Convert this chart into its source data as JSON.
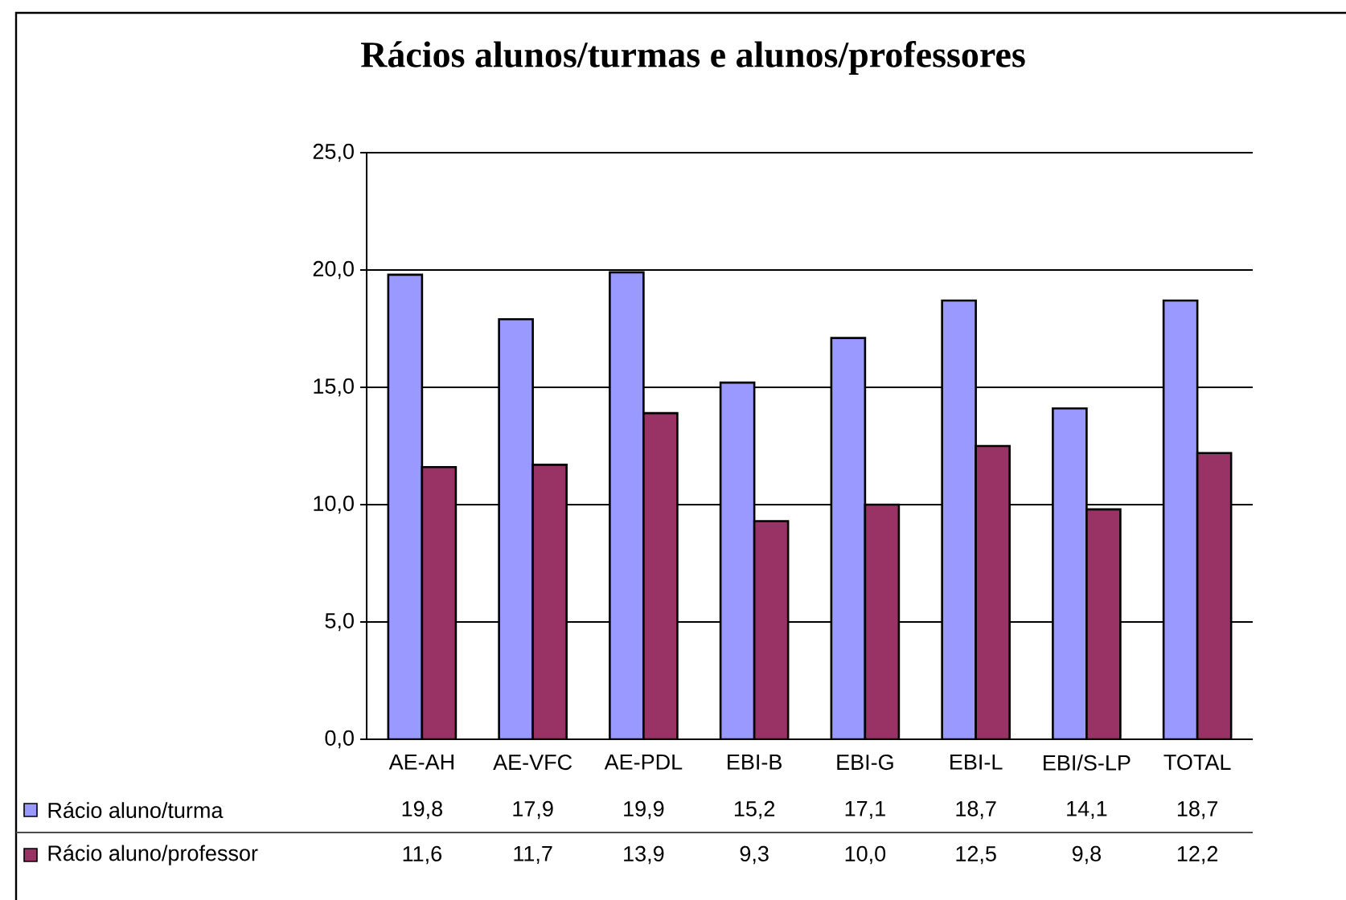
{
  "chart_data": {
    "type": "bar",
    "title": "Rácios alunos/turmas e alunos/professores",
    "categories": [
      "AE-AH",
      "AE-VFC",
      "AE-PDL",
      "EBI-B",
      "EBI-G",
      "EBI-L",
      "EBI/S-LP",
      "TOTAL"
    ],
    "series": [
      {
        "name": "Rácio aluno/turma",
        "color": "#9999ff",
        "values": [
          19.8,
          17.9,
          19.9,
          15.2,
          17.1,
          18.7,
          14.1,
          18.7
        ],
        "value_labels": [
          "19,8",
          "17,9",
          "19,9",
          "15,2",
          "17,1",
          "18,7",
          "14,1",
          "18,7"
        ]
      },
      {
        "name": "Rácio aluno/professor",
        "color": "#993366",
        "values": [
          11.6,
          11.7,
          13.9,
          9.3,
          10.0,
          12.5,
          9.8,
          12.2
        ],
        "value_labels": [
          "11,6",
          "11,7",
          "13,9",
          "9,3",
          "10,0",
          "12,5",
          "9,8",
          "12,2"
        ]
      }
    ],
    "ylim": [
      0,
      25
    ],
    "yticks": [
      {
        "value": 0,
        "label": "0,0"
      },
      {
        "value": 5,
        "label": "5,0"
      },
      {
        "value": 10,
        "label": "10,0"
      },
      {
        "value": 15,
        "label": "15,0"
      },
      {
        "value": 20,
        "label": "20,0"
      },
      {
        "value": 25,
        "label": "25,0"
      }
    ],
    "grid": "y",
    "legend": "bottom"
  }
}
